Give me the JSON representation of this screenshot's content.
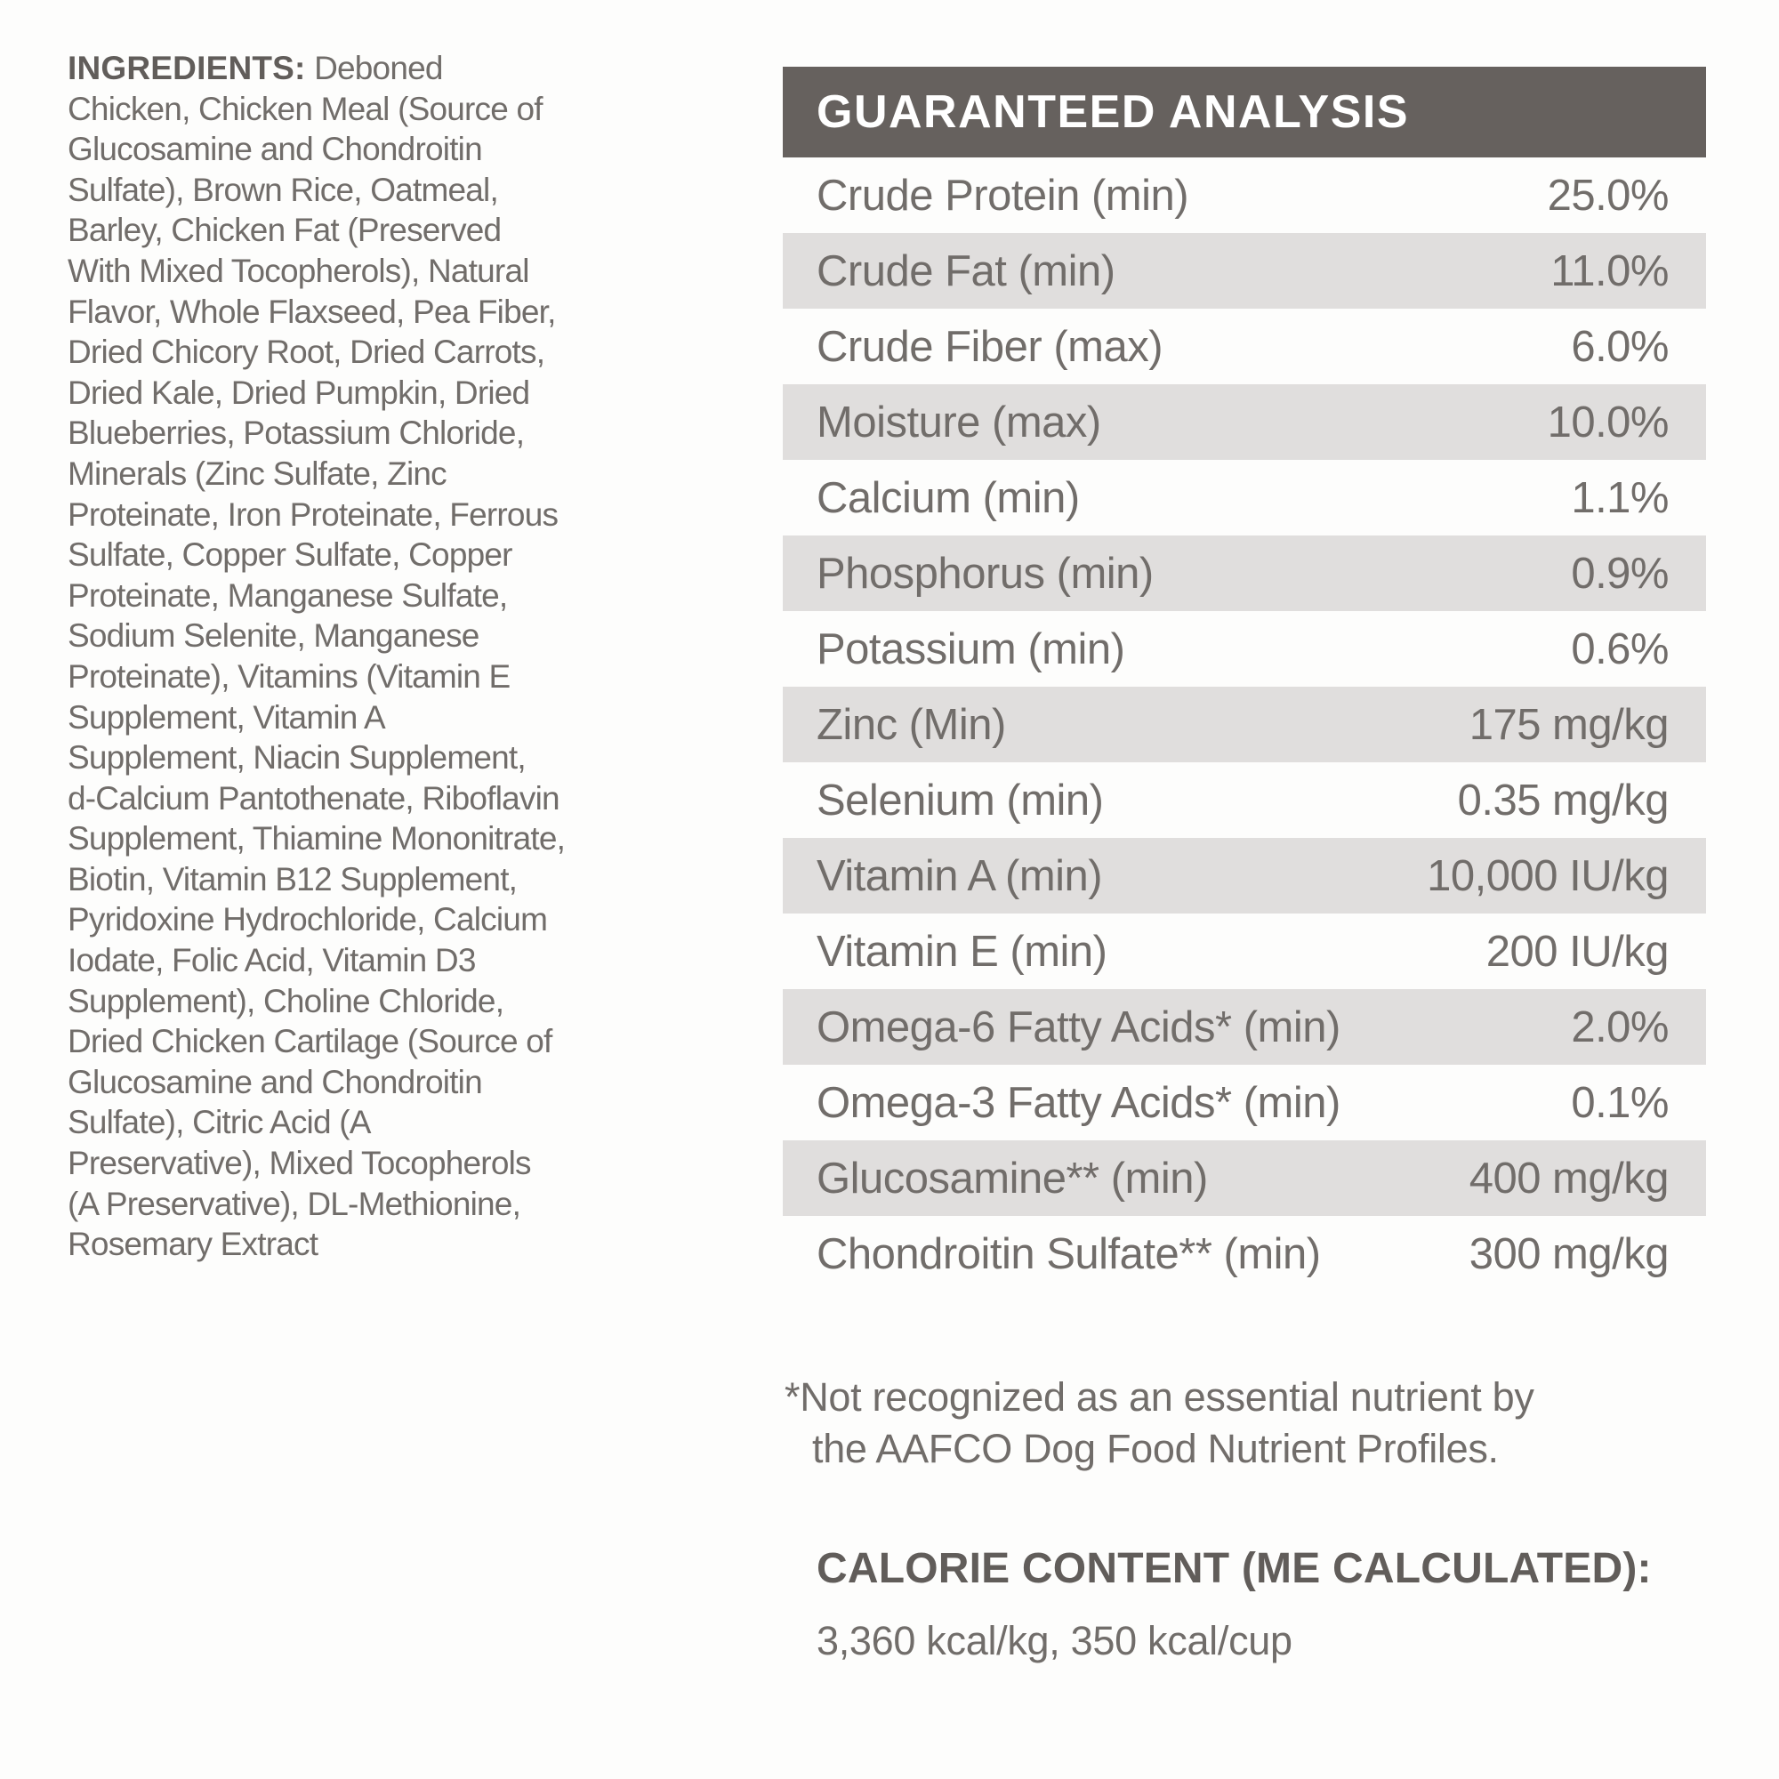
{
  "ingredients": {
    "heading": "INGREDIENTS:",
    "first_line_rest": " Deboned",
    "lines": [
      "Chicken, Chicken Meal (Source of",
      "Glucosamine and Chondroitin",
      "Sulfate), Brown Rice, Oatmeal,",
      "Barley, Chicken Fat (Preserved",
      "With Mixed Tocopherols), Natural",
      "Flavor, Whole Flaxseed, Pea Fiber,",
      "Dried Chicory Root, Dried Carrots,",
      "Dried Kale, Dried Pumpkin, Dried",
      "Blueberries, Potassium Chloride,",
      "Minerals (Zinc Sulfate, Zinc",
      "Proteinate, Iron Proteinate, Ferrous",
      "Sulfate, Copper Sulfate, Copper",
      "Proteinate, Manganese Sulfate,",
      "Sodium Selenite, Manganese",
      "Proteinate), Vitamins (Vitamin E",
      "Supplement, Vitamin A",
      "Supplement, Niacin Supplement,",
      "d-Calcium Pantothenate, Riboflavin",
      "Supplement, Thiamine Mononitrate,",
      "Biotin, Vitamin B12 Supplement,",
      "Pyridoxine Hydrochloride, Calcium",
      "Iodate, Folic Acid, Vitamin D3",
      "Supplement), Choline Chloride,",
      "Dried Chicken Cartilage (Source of",
      "Glucosamine and Chondroitin",
      "Sulfate), Citric Acid (A",
      "Preservative), Mixed Tocopherols",
      "(A Preservative), DL-Methionine,",
      "Rosemary Extract"
    ]
  },
  "analysis": {
    "title": "GUARANTEED ANALYSIS",
    "rows": [
      {
        "label": "Crude Protein (min)",
        "value": "25.0%"
      },
      {
        "label": "Crude Fat (min)",
        "value": "11.0%"
      },
      {
        "label": "Crude Fiber (max)",
        "value": "6.0%"
      },
      {
        "label": "Moisture (max)",
        "value": "10.0%"
      },
      {
        "label": "Calcium (min)",
        "value": "1.1%"
      },
      {
        "label": "Phosphorus (min)",
        "value": "0.9%"
      },
      {
        "label": "Potassium (min)",
        "value": "0.6%"
      },
      {
        "label": "Zinc (Min)",
        "value": "175 mg/kg"
      },
      {
        "label": "Selenium (min)",
        "value": "0.35 mg/kg"
      },
      {
        "label": "Vitamin A (min)",
        "value": "10,000 IU/kg"
      },
      {
        "label": "Vitamin E (min)",
        "value": "200 IU/kg"
      },
      {
        "label": "Omega-6 Fatty Acids* (min)",
        "value": "2.0%"
      },
      {
        "label": "Omega-3 Fatty Acids* (min)",
        "value": "0.1%"
      },
      {
        "label": "Glucosamine** (min)",
        "value": "400 mg/kg"
      },
      {
        "label": "Chondroitin Sulfate** (min)",
        "value": "300 mg/kg"
      }
    ]
  },
  "footnote": {
    "line1": "*Not recognized as an essential nutrient by",
    "line2": "the AAFCO Dog Food Nutrient Profiles."
  },
  "calorie": {
    "heading": "CALORIE CONTENT (ME CALCULATED):",
    "value": "3,360 kcal/kg, 350 kcal/cup"
  },
  "colors": {
    "page_background": "#fdfdfc",
    "header_bar": "#66615e",
    "header_text": "#ffffff",
    "row_stripe": "#e0dedd",
    "body_text": "#716d6a",
    "heading_text": "#615d5a"
  }
}
